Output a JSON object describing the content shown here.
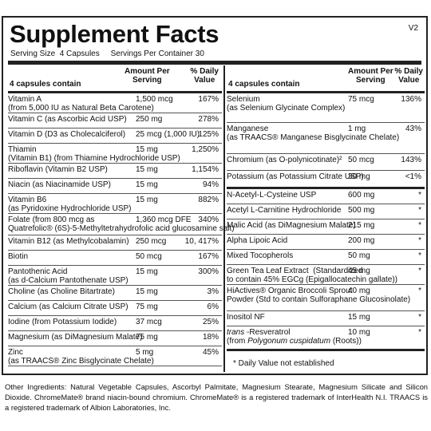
{
  "title": "Supplement Facts",
  "version": "V2",
  "serving": "Serving Size  4 Capsules     Servings Per Container 30",
  "left_header": {
    "col1": "4 capsules contain",
    "col2": "Amount Per\nServing",
    "col3": "% Daily\nValue"
  },
  "right_header": {
    "col1": "4 capsules contain",
    "col2": "Amount Per\nServing",
    "col3": "% Daily\nValue"
  },
  "left_rows": [
    {
      "name": "Vitamin A\n(from 5,000 IU as Natural Beta Carotene)",
      "amount": "1,500 mcg",
      "dv": "167%"
    },
    {
      "name": "Vitamin C (as Ascorbic Acid USP)",
      "amount": "250 mg",
      "dv": "278%"
    },
    {
      "name": "Vitamin D (D3 as Cholecalciferol)",
      "amount": "25 mcg (1,000 IU)",
      "dv": "125%"
    },
    {
      "name": "Thiamin\n(Vitamin B1) (from Thiamine Hydrochloride USP)",
      "amount": "15 mg",
      "dv": "1,250%"
    },
    {
      "name": "Riboflavin (Vitamin B2 USP)",
      "amount": "15 mg",
      "dv": "1,154%"
    },
    {
      "name": "Niacin (as Niacinamide USP)",
      "amount": "15 mg",
      "dv": "94%"
    },
    {
      "name": "Vitamin B6\n(as Pyridoxine Hydrochloride USP)",
      "amount": "15 mg",
      "dv": "882%"
    },
    {
      "name": "Folate (from 800 mcg as\nQuatrefolic® (6S)-5-Methyltetrahydrofolic acid glucosamine salt)",
      "amount": "1,360 mcg DFE",
      "dv": "340%"
    },
    {
      "name": "Vitamin B12 (as Methylcobalamin)",
      "amount": "250 mcg",
      "dv": "10, 417%"
    },
    {
      "name": "Biotin",
      "amount": "50 mcg",
      "dv": "167%"
    },
    {
      "name": "Pantothenic Acid\n(as d-Calcium Pantothenate USP)",
      "amount": "15 mg",
      "dv": "300%"
    },
    {
      "name": "Choline (as Choline Bitartrate)",
      "amount": "15 mg",
      "dv": "3%"
    },
    {
      "name": "Calcium (as Calcium Citrate USP)",
      "amount": "75 mg",
      "dv": "6%"
    },
    {
      "name": "Iodine (from Potassium Iodide)",
      "amount": "37 mcg",
      "dv": "25%"
    },
    {
      "name": "Magnesium (as DiMagnesium Malate)",
      "amount": "75 mg",
      "dv": "18%"
    },
    {
      "name": "Zinc\n(as TRAACS® Zinc Bisglycinate Chelate)",
      "amount": "5 mg",
      "dv": "45%"
    }
  ],
  "right_rows_a": [
    {
      "name": "Selenium\n(as Selenium Glycinate Complex)",
      "amount": "75 mcg",
      "dv": "136%"
    },
    {
      "name": "Manganese\n(as TRAACS® Manganese Bisglycinate Chelate)",
      "amount": "1 mg",
      "dv": "43%"
    },
    {
      "name": "Chromium (as O-polynicotinate)²",
      "amount": "50 mcg",
      "dv": "143%"
    },
    {
      "name": "Potassium (as Potassium Citrate USP)",
      "amount": "30 mg",
      "dv": "<1%"
    }
  ],
  "right_rows_b": [
    {
      "name": "N-Acetyl-L-Cysteine USP",
      "amount": "600 mg",
      "dv": "*"
    },
    {
      "name": "Acetyl L-Carnitine Hydrochloride",
      "amount": "500 mg",
      "dv": "*"
    },
    {
      "name": "Malic Acid (as DiMagnesium Malate)",
      "amount": "215 mg",
      "dv": "*"
    },
    {
      "name": "Alpha Lipoic Acid",
      "amount": "200 mg",
      "dv": "*"
    },
    {
      "name": "Mixed Tocopherols",
      "amount": "50 mg",
      "dv": "*"
    },
    {
      "name": "Green Tea Leaf Extract  (Standardized\nto contain 45% EGCg (Epigallocatechin gallate))",
      "amount": "45 mg",
      "dv": "*"
    },
    {
      "name": "HiActives® Organic Broccoli Sprout\nPowder (Std to contain Sulforaphane Glucosinolate)",
      "amount": "40 mg",
      "dv": "*"
    },
    {
      "name": "Inositol NF",
      "amount": "15 mg",
      "dv": "*"
    },
    {
      "name": "trans -Resveratrol\n(from Polygonum cuspidatum (Roots))",
      "amount": "10 mg",
      "dv": "*"
    }
  ],
  "footnote": "* Daily Value not established",
  "other_ingredients": "Other Ingredients: Natural Vegetable Capsules, Ascorbyl Palmitate, Magnesium Stearate, Magnesium Silicate and Silicon Dioxide. ChromeMate® brand niacin-bound chromium. ChromeMate® is a registered trademark of InterHealth N.I. TRAACS is a registered trademark of Albion Laboratories, Inc."
}
